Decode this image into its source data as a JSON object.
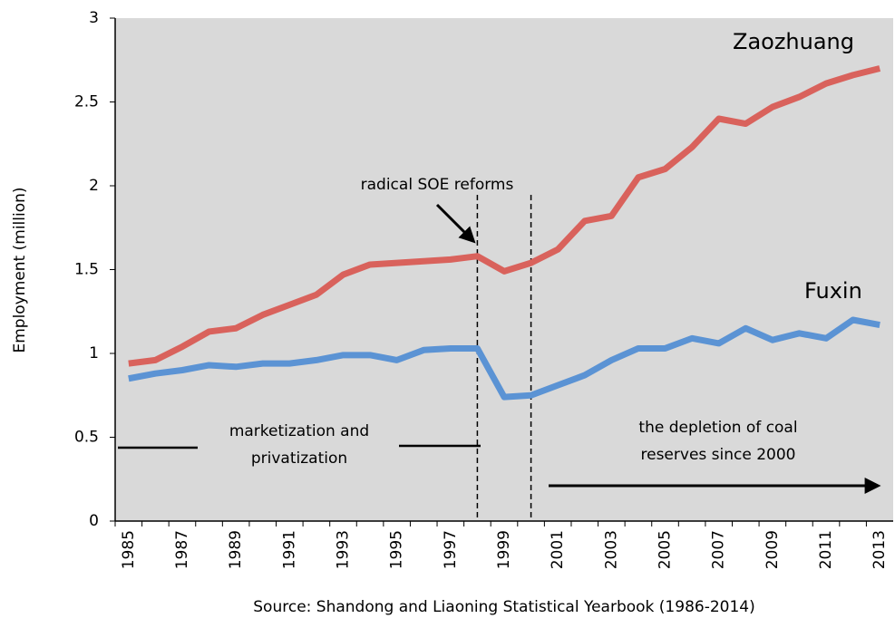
{
  "chart_data": {
    "type": "line",
    "y_label": "Employment (million)",
    "source": "Source: Shandong and Liaoning Statistical Yearbook (1986-2014)",
    "categories": [
      "1985",
      null,
      "1987",
      null,
      "1989",
      null,
      "1991",
      null,
      "1993",
      null,
      "1995",
      null,
      "1997",
      null,
      "1999",
      null,
      "2001",
      null,
      "2003",
      null,
      "2005",
      null,
      "2007",
      null,
      "2009",
      null,
      "2011",
      null,
      "2013"
    ],
    "series": [
      {
        "name": "Zaozhuang",
        "color": "#d9625c",
        "values": [
          0.94,
          0.96,
          1.04,
          1.13,
          1.15,
          1.23,
          1.29,
          1.35,
          1.47,
          1.53,
          1.54,
          1.55,
          1.56,
          1.58,
          1.49,
          1.54,
          1.62,
          1.79,
          1.82,
          2.05,
          2.1,
          2.23,
          2.4,
          2.37,
          2.47,
          2.53,
          2.61,
          2.66,
          2.7
        ]
      },
      {
        "name": "Fuxin",
        "color": "#5b93d4",
        "values": [
          0.85,
          0.88,
          0.9,
          0.93,
          0.92,
          0.94,
          0.94,
          0.96,
          0.99,
          0.99,
          0.96,
          1.02,
          1.03,
          1.03,
          0.74,
          0.75,
          0.81,
          0.87,
          0.96,
          1.03,
          1.03,
          1.09,
          1.06,
          1.15,
          1.08,
          1.12,
          1.09,
          1.2,
          1.17
        ]
      }
    ],
    "ylim": [
      0,
      3
    ],
    "yticks": [
      0,
      0.5,
      1,
      1.5,
      2,
      2.5,
      3
    ],
    "annotations": {
      "reforms": "radical SOE reforms",
      "market": [
        "marketization and",
        "privatization"
      ],
      "depletion": [
        "the depletion of coal",
        "reserves since 2000"
      ]
    }
  }
}
